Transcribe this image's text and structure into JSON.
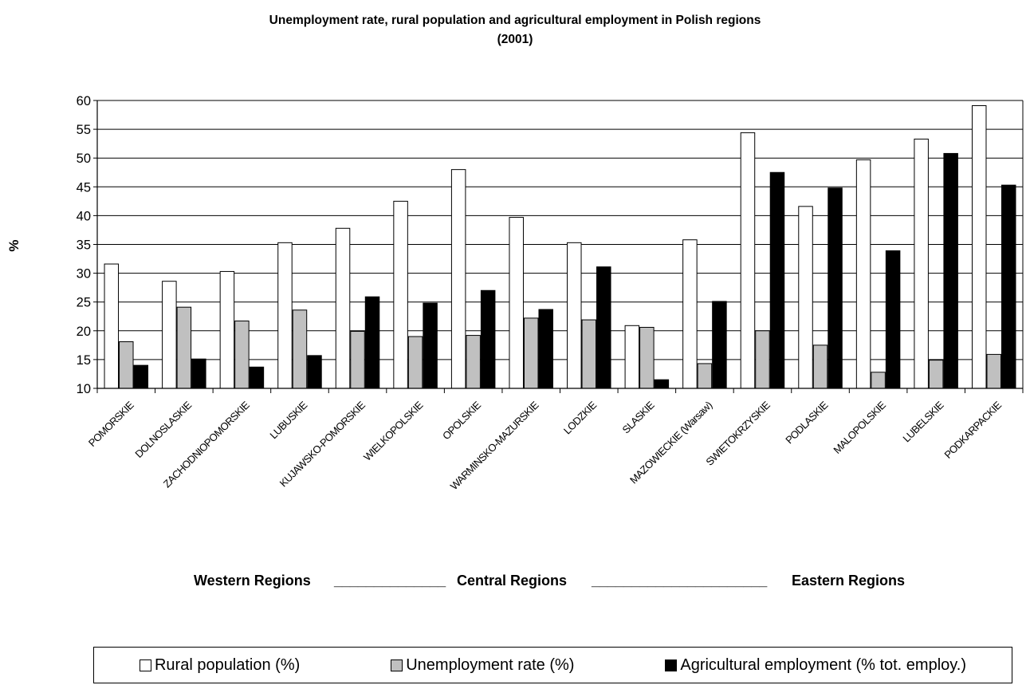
{
  "chart_data": {
    "type": "bar",
    "title": "Unemployment rate, rural population and agricultural employment in Polish regions",
    "title_line2": "(2001)",
    "xlabel": "",
    "ylabel": "%",
    "ylim": [
      10,
      60
    ],
    "yticks": [
      10,
      15,
      20,
      25,
      30,
      35,
      40,
      45,
      50,
      55,
      60
    ],
    "grid": true,
    "legend_position": "bottom",
    "categories": [
      "POMORSKIE",
      "DOLNOSLASKIE",
      "ZACHODNIOPOMORSKIE",
      "LUBUSKIE",
      "KUJAWSKO-POMORSKIE",
      "WIELKOPOLSKIE",
      "OPOLSKIE",
      "WARMINSKO-MAZURSKIE",
      "LODZKIE",
      "SLASKIE",
      "MAZOWIECKIE (Warsaw)",
      "SWIETOKRZYSKIE",
      "PODLASKIE",
      "MALOPOLSKIE",
      "LUBELSKIE",
      "PODKARPACKIE"
    ],
    "series": [
      {
        "name": "Rural population (%)",
        "color": "#ffffff",
        "values": [
          31.6,
          28.6,
          30.3,
          35.3,
          37.8,
          42.5,
          48.0,
          39.7,
          35.3,
          20.9,
          35.8,
          54.4,
          41.6,
          49.7,
          53.3,
          59.1
        ]
      },
      {
        "name": "Unemployment rate (%)",
        "color": "#c0c0c0",
        "values": [
          18.1,
          24.1,
          21.7,
          23.6,
          19.9,
          19.0,
          19.2,
          22.2,
          21.9,
          20.6,
          14.3,
          20.0,
          17.5,
          12.8,
          14.9,
          15.9
        ]
      },
      {
        "name": "Agricultural employment (% tot. employ.)",
        "color": "#000000",
        "values": [
          14.0,
          15.1,
          13.7,
          15.7,
          25.9,
          24.8,
          27.0,
          23.7,
          31.1,
          11.5,
          25.1,
          47.5,
          44.8,
          33.9,
          null,
          45.3
        ]
      }
    ]
  },
  "chart_data_extra": {
    "lubelskie_agri_value": 50.8
  },
  "regions_line": {
    "western": "Western Regions",
    "sep1": "______________",
    "central": "Central Regions",
    "sep2": " ______________________",
    "eastern": "Eastern Regions"
  }
}
